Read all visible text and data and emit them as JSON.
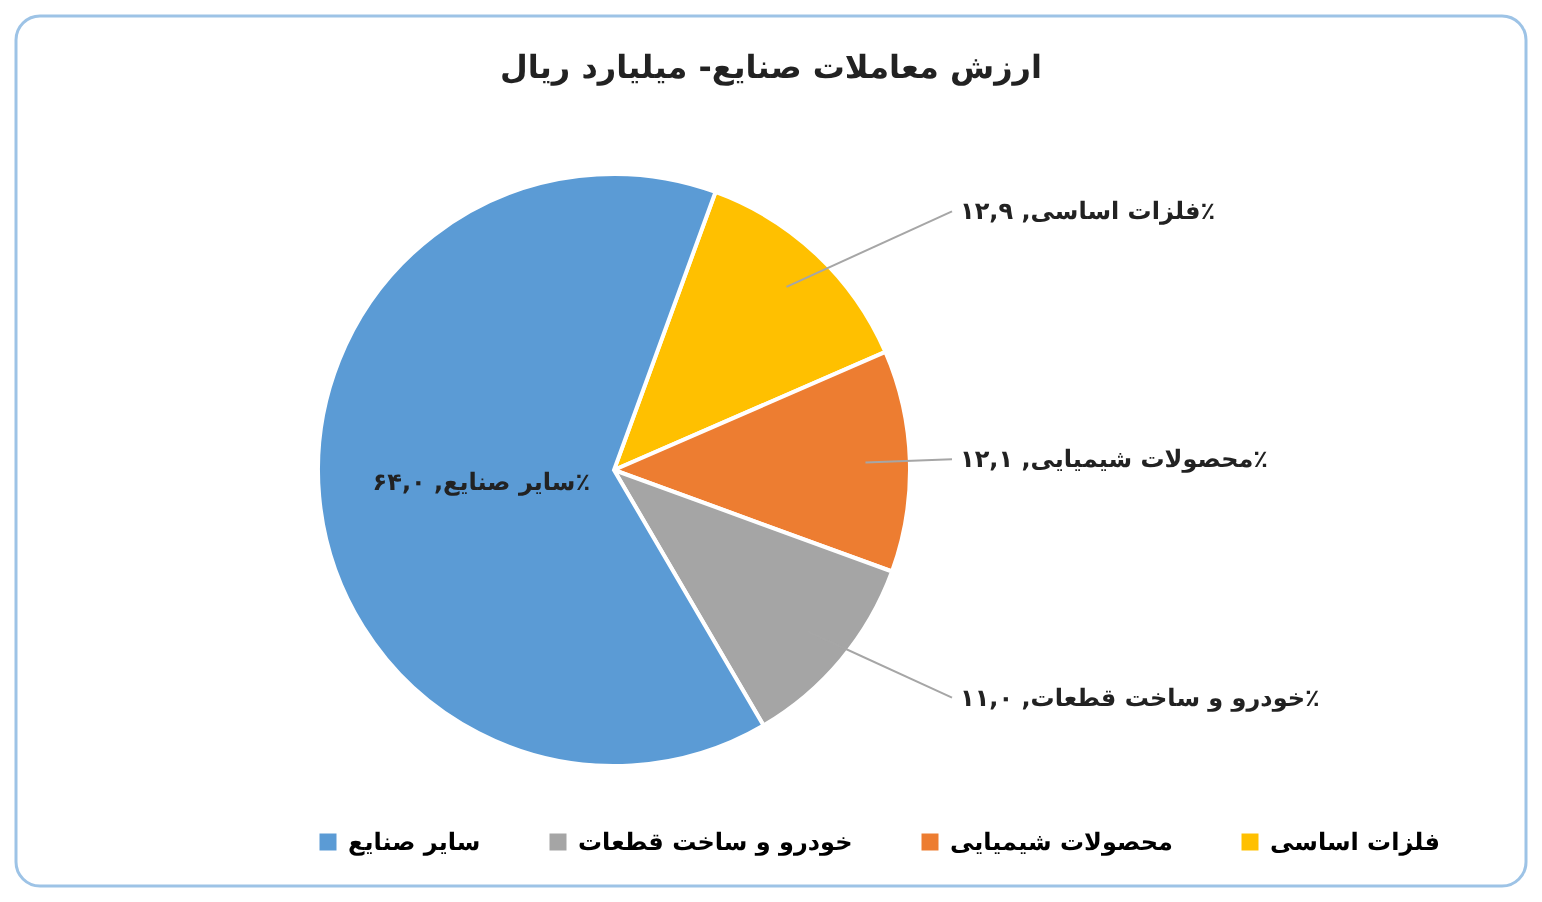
{
  "chart_data": {
    "type": "pie",
    "title": "ارزش معاملات صنایع- میلیارد ریال",
    "categories": [
      "فلزات اساسی",
      "محصولات شیمیایی",
      "خودرو و ساخت قطعات",
      "سایر صنایع"
    ],
    "values": [
      12.9,
      12.1,
      11.0,
      64.0
    ],
    "colors": [
      "#ffc000",
      "#ed7d31",
      "#a5a5a5",
      "#5b9bd5"
    ],
    "value_labels": [
      "فلزات اساسی, ۱۲,۹٪",
      "محصولات شیمیایی, ۱۲,۱٪",
      "خودرو و ساخت قطعات, ۱۱,۰٪",
      "سایر صنایع, ۶۴,۰٪"
    ],
    "legend": "bottom"
  }
}
